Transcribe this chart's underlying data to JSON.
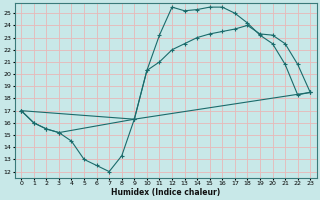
{
  "xlabel": "Humidex (Indice chaleur)",
  "bg_color": "#c8e8e8",
  "grid_color": "#e8b8b8",
  "line_color": "#1a6b6b",
  "xlim": [
    -0.5,
    23.5
  ],
  "ylim": [
    11.5,
    25.8
  ],
  "xticks": [
    0,
    1,
    2,
    3,
    4,
    5,
    6,
    7,
    8,
    9,
    10,
    11,
    12,
    13,
    14,
    15,
    16,
    17,
    18,
    19,
    20,
    21,
    22,
    23
  ],
  "yticks": [
    12,
    13,
    14,
    15,
    16,
    17,
    18,
    19,
    20,
    21,
    22,
    23,
    24,
    25
  ],
  "line1_x": [
    0,
    1,
    2,
    3,
    4,
    5,
    6,
    7,
    8,
    9,
    10,
    11,
    12,
    13,
    14,
    15,
    16,
    17,
    18,
    19,
    20,
    21,
    22,
    23
  ],
  "line1_y": [
    17.0,
    16.0,
    15.5,
    15.2,
    14.5,
    13.0,
    12.5,
    12.0,
    13.3,
    16.3,
    20.3,
    23.2,
    25.5,
    25.2,
    25.3,
    25.5,
    25.5,
    25.0,
    24.2,
    23.2,
    22.5,
    20.8,
    18.3,
    18.5
  ],
  "line2_x": [
    0,
    9,
    10,
    11,
    12,
    13,
    14,
    15,
    16,
    17,
    18,
    19,
    20,
    21,
    22,
    23
  ],
  "line2_y": [
    17.0,
    16.3,
    20.3,
    21.0,
    22.0,
    22.5,
    23.0,
    23.3,
    23.5,
    23.7,
    24.0,
    23.3,
    23.2,
    22.5,
    20.8,
    18.5
  ],
  "line3_x": [
    0,
    1,
    2,
    3,
    9,
    23
  ],
  "line3_y": [
    17.0,
    16.0,
    15.5,
    15.2,
    16.3,
    18.5
  ]
}
